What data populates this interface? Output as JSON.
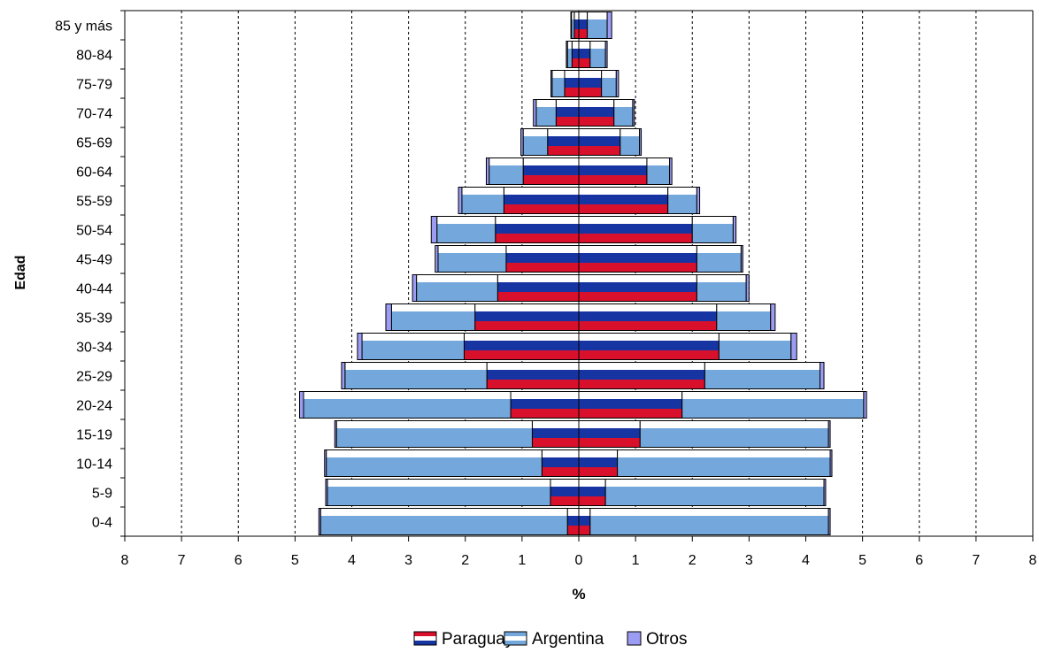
{
  "chart_data": {
    "type": "bar",
    "orientation": "horizontal",
    "stacked": true,
    "diverging": true,
    "title": "",
    "xlabel": "%",
    "ylabel": "Edad",
    "xlim": [
      -8,
      8
    ],
    "x_ticks": [
      -8,
      -7,
      -6,
      -5,
      -4,
      -3,
      -2,
      -1,
      0,
      1,
      2,
      3,
      4,
      5,
      6,
      7,
      8
    ],
    "x_tick_labels": [
      "8",
      "7",
      "6",
      "5",
      "4",
      "3",
      "2",
      "1",
      "0",
      "1",
      "2",
      "3",
      "4",
      "5",
      "6",
      "7",
      "8"
    ],
    "grid": "vertical dashed",
    "legend_position": "bottom",
    "categories": [
      "0-4",
      "5-9",
      "10-14",
      "15-19",
      "20-24",
      "25-29",
      "30-34",
      "35-39",
      "40-44",
      "45-49",
      "50-54",
      "55-59",
      "60-64",
      "65-69",
      "70-74",
      "75-79",
      "80-84",
      "85 y más"
    ],
    "series": [
      {
        "name": "Paraguay",
        "key": "paraguay",
        "left": [
          0.2,
          0.5,
          0.65,
          0.82,
          1.2,
          1.62,
          2.02,
          1.83,
          1.43,
          1.28,
          1.47,
          1.32,
          0.98,
          0.55,
          0.4,
          0.25,
          0.12,
          0.08
        ],
        "right": [
          0.2,
          0.47,
          0.68,
          1.08,
          1.82,
          2.22,
          2.47,
          2.43,
          2.08,
          2.08,
          2.0,
          1.57,
          1.2,
          0.73,
          0.62,
          0.4,
          0.2,
          0.15
        ]
      },
      {
        "name": "Argentina",
        "key": "argentina",
        "left": [
          4.35,
          3.93,
          3.8,
          3.45,
          3.65,
          2.5,
          1.8,
          1.47,
          1.43,
          1.2,
          1.03,
          0.74,
          0.6,
          0.43,
          0.35,
          0.22,
          0.08,
          0.05
        ],
        "right": [
          4.2,
          3.85,
          3.75,
          3.32,
          3.2,
          2.03,
          1.27,
          0.95,
          0.87,
          0.78,
          0.72,
          0.51,
          0.4,
          0.34,
          0.33,
          0.26,
          0.27,
          0.35
        ]
      },
      {
        "name": "Otros",
        "key": "otros",
        "left": [
          0.03,
          0.03,
          0.03,
          0.03,
          0.07,
          0.06,
          0.08,
          0.1,
          0.07,
          0.05,
          0.1,
          0.06,
          0.05,
          0.04,
          0.05,
          0.02,
          0.02,
          0.01
        ],
        "right": [
          0.03,
          0.03,
          0.03,
          0.03,
          0.05,
          0.07,
          0.1,
          0.08,
          0.05,
          0.03,
          0.05,
          0.05,
          0.04,
          0.03,
          0.03,
          0.04,
          0.03,
          0.08
        ]
      }
    ]
  },
  "colors": {
    "paraguay_red": "#d8102c",
    "paraguay_blue": "#1734a3",
    "argentina_blue": "#74a8dc",
    "otros": "#9b9cf2",
    "grid": "#000000",
    "text": "#000000"
  },
  "legend": {
    "items": [
      {
        "key": "paraguay",
        "label": "Paraguay"
      },
      {
        "key": "argentina",
        "label": "Argentina"
      },
      {
        "key": "otros",
        "label": "Otros"
      }
    ]
  }
}
